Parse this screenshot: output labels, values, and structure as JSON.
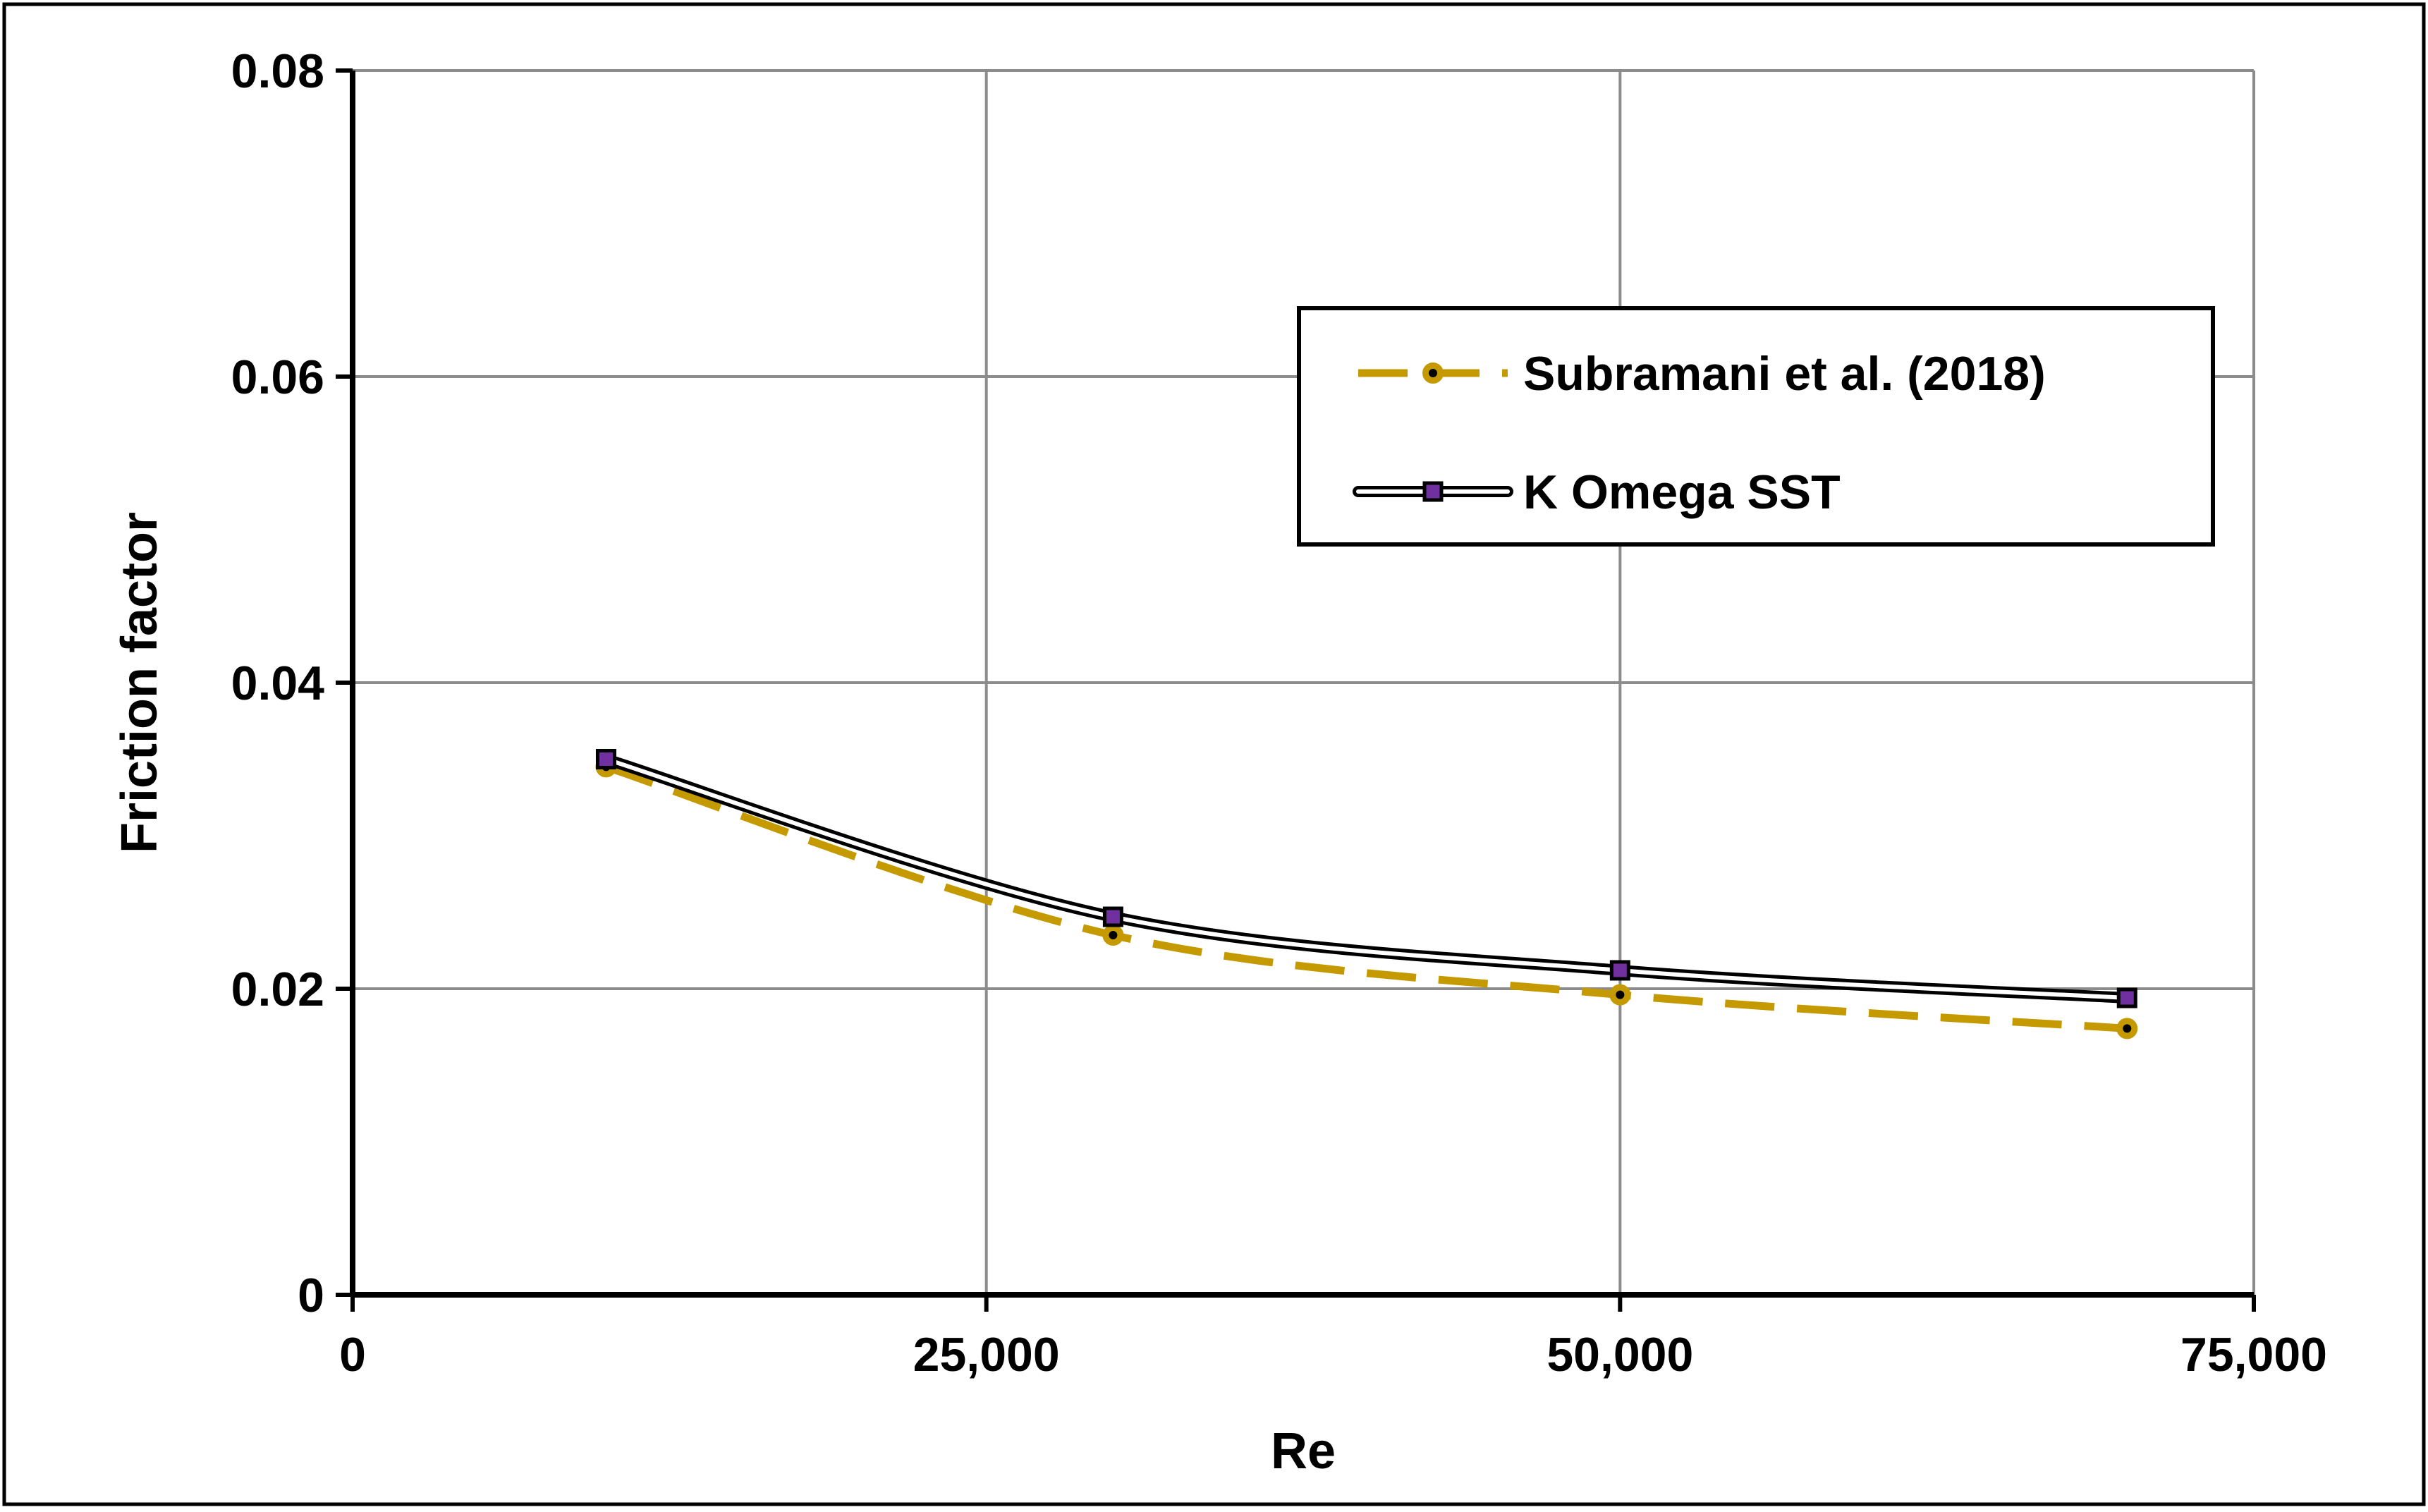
{
  "chart_data": {
    "type": "line",
    "title": "",
    "xlabel": "Re",
    "ylabel": "Friction factor",
    "xlim": [
      0,
      75000
    ],
    "ylim": [
      0,
      0.08
    ],
    "x_ticks": [
      0,
      25000,
      50000,
      75000
    ],
    "x_tick_labels": [
      "0",
      "25,000",
      "50,000",
      "75,000"
    ],
    "y_ticks": [
      0,
      0.02,
      0.04,
      0.06,
      0.08
    ],
    "y_tick_labels": [
      "0",
      "0.02",
      "0.04",
      "0.06",
      "0.08"
    ],
    "grid": true,
    "legend_position": "top-right",
    "series": [
      {
        "name": "Subramani et al. (2018)",
        "x": [
          10000,
          30000,
          50000,
          70000
        ],
        "y": [
          0.0345,
          0.0235,
          0.0196,
          0.0174
        ],
        "line_style": "dashed",
        "marker": "circle",
        "color": "#C49A00",
        "marker_fill": "#C49A00",
        "marker_center": "#000000"
      },
      {
        "name": "K Omega SST",
        "x": [
          10000,
          30000,
          50000,
          70000
        ],
        "y": [
          0.035,
          0.0247,
          0.0212,
          0.0194
        ],
        "line_style": "double",
        "marker": "square",
        "color": "#000000",
        "marker_fill": "#7030A0"
      }
    ]
  }
}
